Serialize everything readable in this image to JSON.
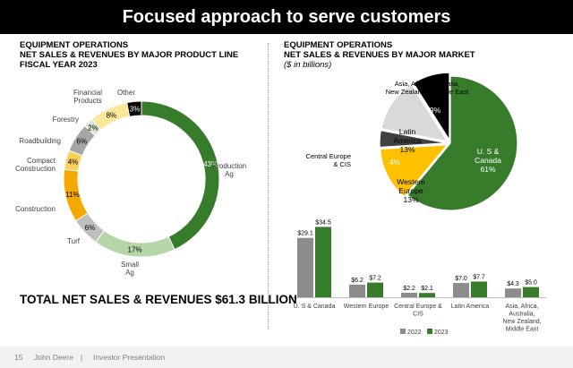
{
  "header": {
    "title": "Focused approach to serve customers"
  },
  "left_panel": {
    "title_line1": "EQUIPMENT OPERATIONS",
    "title_line2": "NET SALES & REVENUES BY MAJOR PRODUCT LINE",
    "title_line3": "FISCAL YEAR 2023",
    "total": "TOTAL NET SALES & REVENUES $61.3 BILLION"
  },
  "right_panel": {
    "title_line1": "EQUIPMENT OPERATIONS",
    "title_line2": "NET SALES & REVENUES BY MAJOR MARKET",
    "subtitle": "($ in billions)"
  },
  "footer": {
    "page": "15",
    "company": "John Deere",
    "sep": "|",
    "doc": "Investor Presentation"
  },
  "chart_data": [
    {
      "type": "pie",
      "variant": "donut",
      "title": "",
      "unit": "%",
      "slices": [
        {
          "label": "Production Ag",
          "value": 43,
          "color": "#367c2b"
        },
        {
          "label": "Small Ag",
          "value": 17,
          "color": "#b5d6a7"
        },
        {
          "label": "Turf",
          "value": 6,
          "color": "#bfbfbf"
        },
        {
          "label": "Construction",
          "value": 11,
          "color": "#f5a800"
        },
        {
          "label": "Compact Construction",
          "value": 4,
          "color": "#fbd15a"
        },
        {
          "label": "Roadbuilding",
          "value": 6,
          "color": "#a6a6a6"
        },
        {
          "label": "Forestry",
          "value": 2,
          "color": "#d9e8cf"
        },
        {
          "label": "Financial Products",
          "value": 8,
          "color": "#f9e79a"
        },
        {
          "label": "Other",
          "value": 3,
          "color": "#000000"
        }
      ]
    },
    {
      "type": "pie",
      "title": "",
      "unit": "%",
      "slices": [
        {
          "label": "U. S & Canada",
          "value": 61,
          "color": "#367c2b"
        },
        {
          "label": "Western Europe",
          "value": 13,
          "color": "#ffc000"
        },
        {
          "label": "Central Europe & CIS",
          "value": 4,
          "color": "#404040"
        },
        {
          "label": "Latin America",
          "value": 13,
          "color": "#d9d9d9"
        },
        {
          "label": "Asia, Africa, Australia, New Zealand & Middle East",
          "value": 9,
          "color": "#000000"
        }
      ]
    },
    {
      "type": "bar",
      "title": "",
      "unit": "$ in billions",
      "ylim": [
        0,
        36
      ],
      "categories": [
        "U. S & Canada",
        "Western Europe",
        "Central Europe & CIS",
        "Latin America",
        "Asia, Africa, Australia, New Zealand, Middle East"
      ],
      "series": [
        {
          "name": "2022",
          "values": [
            29.1,
            6.2,
            2.2,
            7.0,
            4.3
          ],
          "labels": [
            "$29.1",
            "$6.2",
            "$2.2",
            "$7.0",
            "$4.3"
          ],
          "color": "#8c8c8c"
        },
        {
          "name": "2023",
          "values": [
            34.5,
            7.2,
            2.1,
            7.7,
            5.0
          ],
          "labels": [
            "$34.5",
            "$7.2",
            "$2.1",
            "$7.7",
            "$5.0"
          ],
          "color": "#367c2b"
        }
      ]
    }
  ]
}
